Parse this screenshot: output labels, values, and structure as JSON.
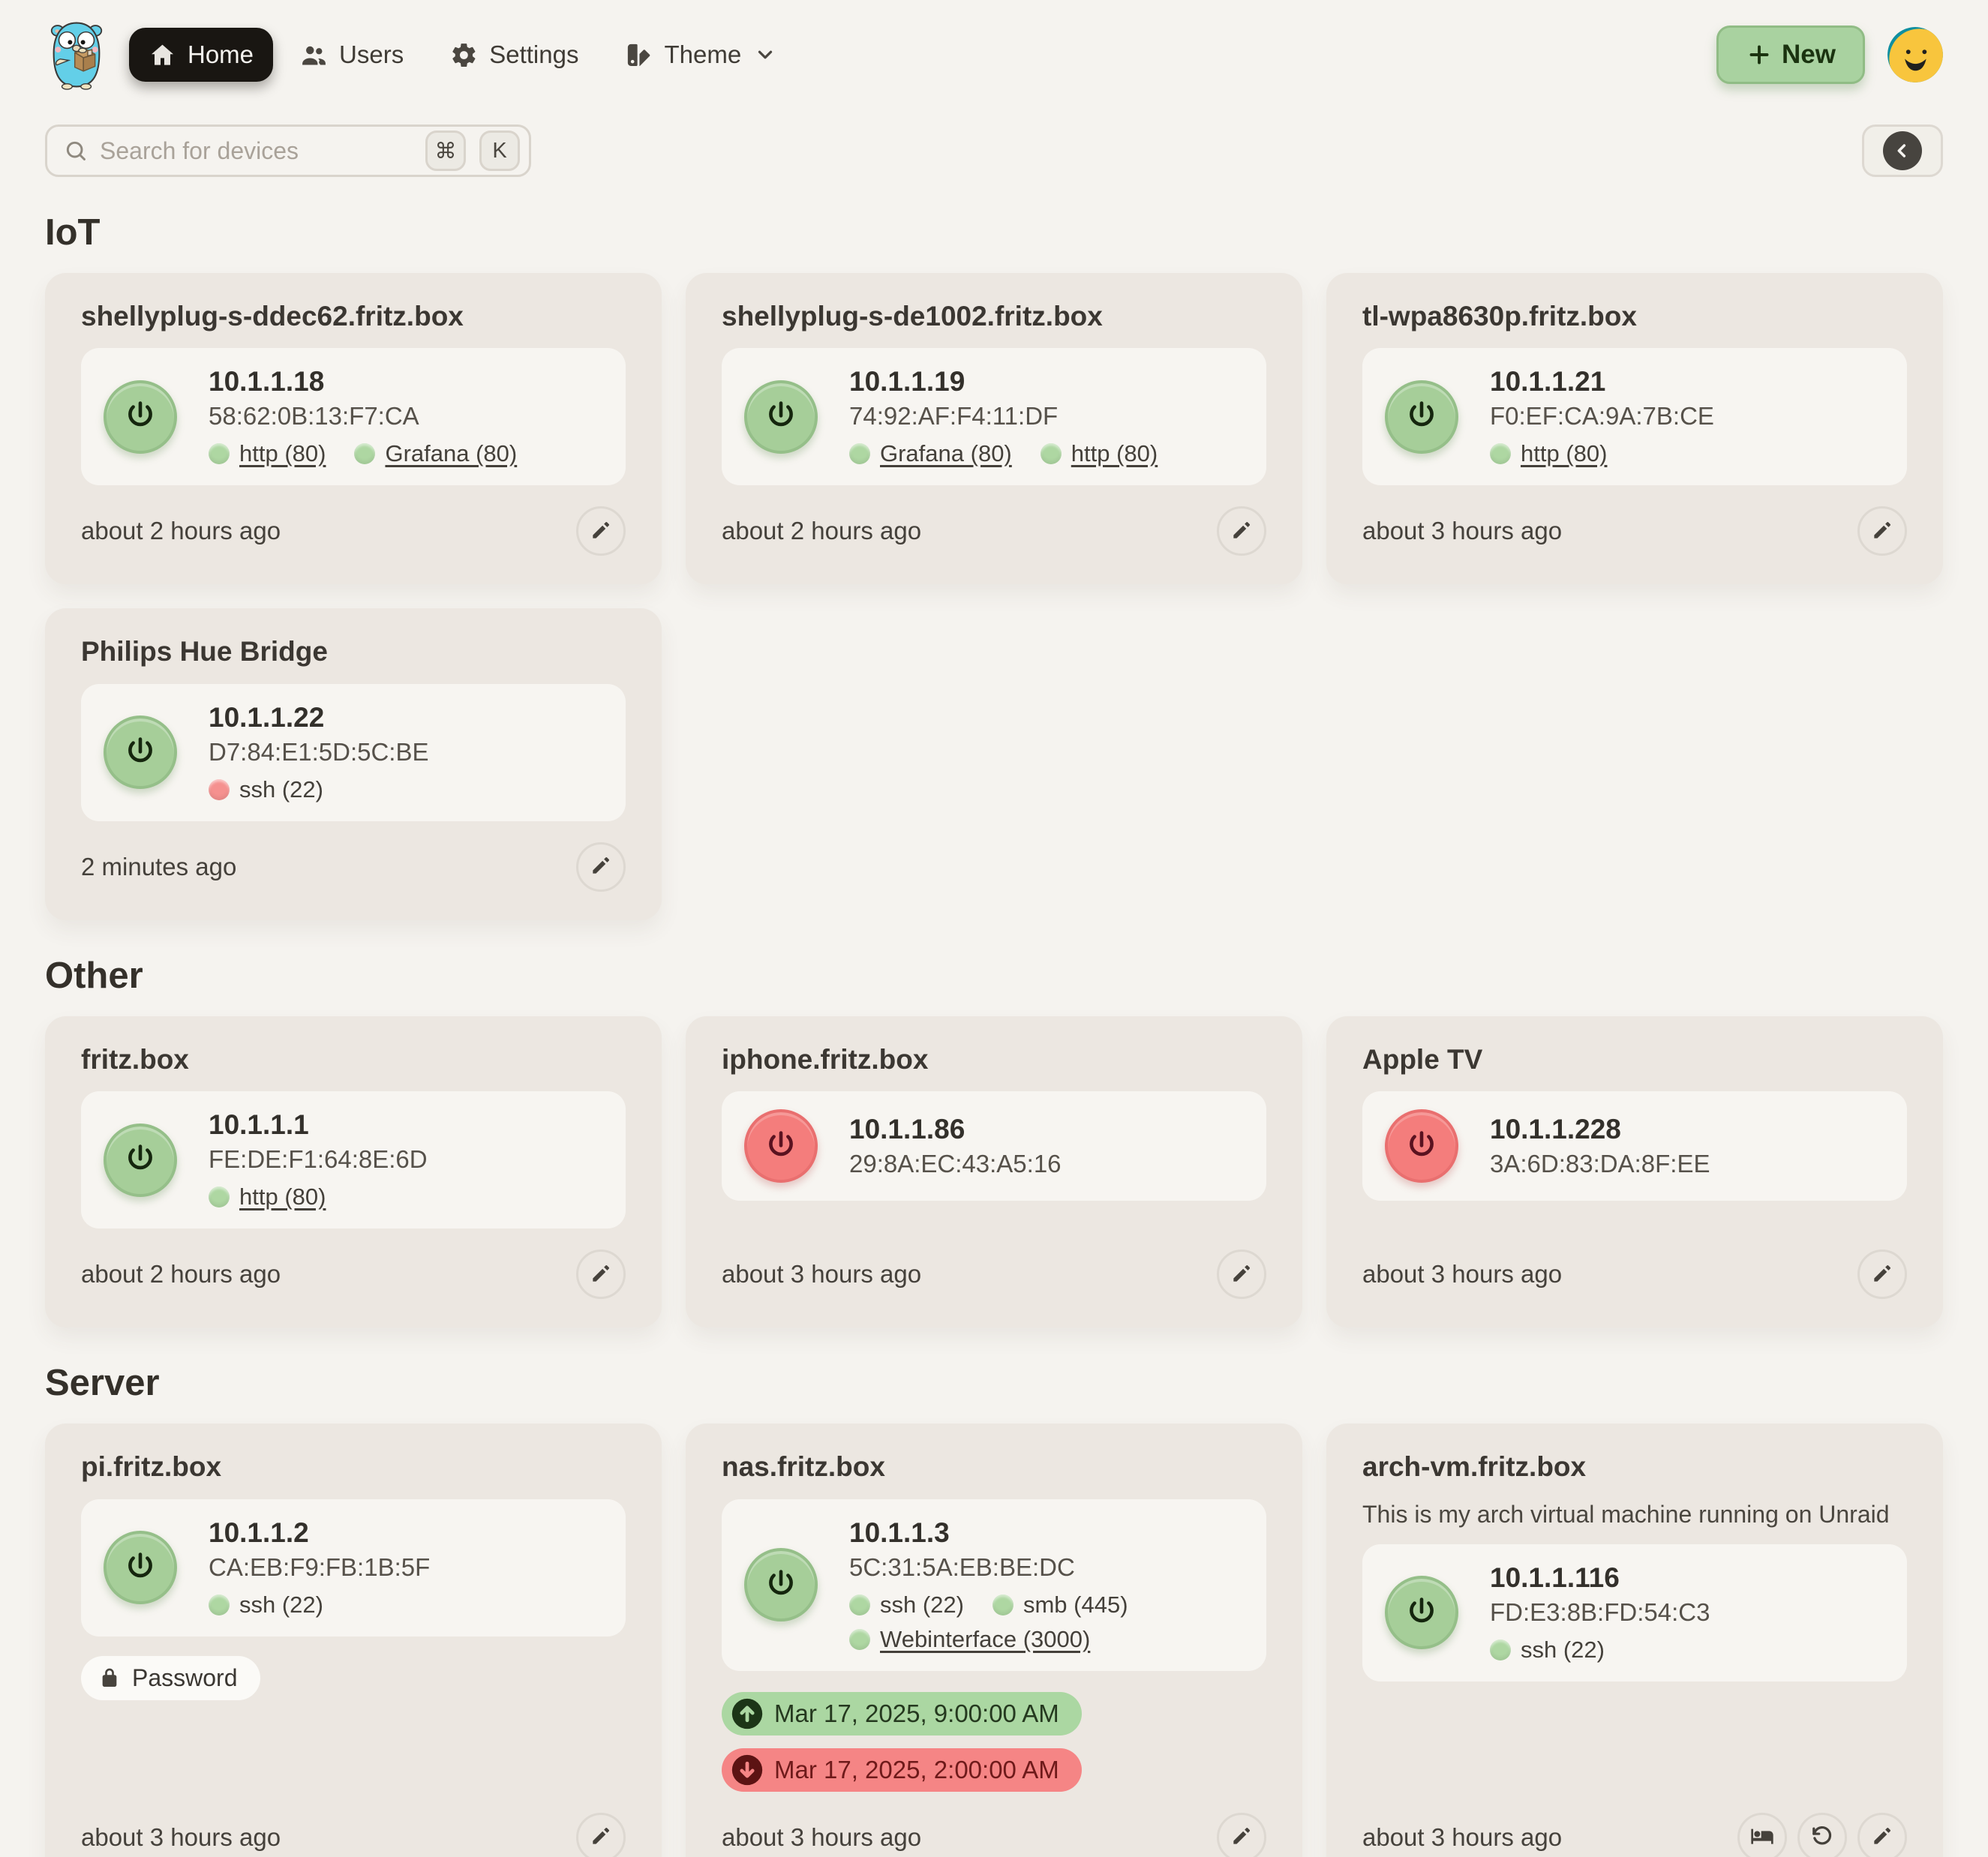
{
  "nav": {
    "items": [
      {
        "label": "Home",
        "icon": "home-icon",
        "active": true
      },
      {
        "label": "Users",
        "icon": "users-icon",
        "active": false
      },
      {
        "label": "Settings",
        "icon": "gear-icon",
        "active": false
      },
      {
        "label": "Theme",
        "icon": "theme-icon",
        "active": false,
        "chevron": true
      }
    ],
    "new_label": "New"
  },
  "search": {
    "placeholder": "Search for devices",
    "kbd_meta": "⌘",
    "kbd_key": "K"
  },
  "colors": {
    "page_bg": "#f5f3ef",
    "card_bg": "#ece7e1",
    "panel_bg": "#f7f5f1",
    "nav_active_bg": "#191612",
    "accent_green": "#a6ce99",
    "accent_red": "#f47d7c",
    "port_open_dot": "#aed7a2",
    "port_closed_dot": "#f5918f",
    "badge_wake_bg": "#abd7a2",
    "badge_shutdown_bg": "#f58585",
    "new_button_bg": "#a9d2a0"
  },
  "sections": [
    {
      "title": "IoT",
      "devices": [
        {
          "name": "shellyplug-s-ddec62.fritz.box",
          "status": "on",
          "ip": "10.1.1.18",
          "mac": "58:62:0B:13:F7:CA",
          "ports": [
            {
              "label": "http (80)",
              "status": "open",
              "link": true
            },
            {
              "label": "Grafana (80)",
              "status": "open",
              "link": true
            }
          ],
          "updated": "about 2 hours ago",
          "actions": [
            "edit"
          ]
        },
        {
          "name": "shellyplug-s-de1002.fritz.box",
          "status": "on",
          "ip": "10.1.1.19",
          "mac": "74:92:AF:F4:11:DF",
          "ports": [
            {
              "label": "Grafana (80)",
              "status": "open",
              "link": true
            },
            {
              "label": "http (80)",
              "status": "open",
              "link": true
            }
          ],
          "updated": "about 2 hours ago",
          "actions": [
            "edit"
          ]
        },
        {
          "name": "tl-wpa8630p.fritz.box",
          "status": "on",
          "ip": "10.1.1.21",
          "mac": "F0:EF:CA:9A:7B:CE",
          "ports": [
            {
              "label": "http (80)",
              "status": "open",
              "link": true
            }
          ],
          "updated": "about 3 hours ago",
          "actions": [
            "edit"
          ]
        },
        {
          "name": "Philips Hue Bridge",
          "status": "on",
          "ip": "10.1.1.22",
          "mac": "D7:84:E1:5D:5C:BE",
          "ports": [
            {
              "label": "ssh (22)",
              "status": "closed",
              "link": false
            }
          ],
          "updated": "2 minutes ago",
          "actions": [
            "edit"
          ]
        }
      ]
    },
    {
      "title": "Other",
      "devices": [
        {
          "name": "fritz.box",
          "status": "on",
          "ip": "10.1.1.1",
          "mac": "FE:DE:F1:64:8E:6D",
          "ports": [
            {
              "label": "http (80)",
              "status": "open",
              "link": true
            }
          ],
          "updated": "about 2 hours ago",
          "actions": [
            "edit"
          ]
        },
        {
          "name": "iphone.fritz.box",
          "status": "off",
          "ip": "10.1.1.86",
          "mac": "29:8A:EC:43:A5:16",
          "ports": [],
          "updated": "about 3 hours ago",
          "actions": [
            "edit"
          ]
        },
        {
          "name": "Apple TV",
          "status": "off",
          "ip": "10.1.1.228",
          "mac": "3A:6D:83:DA:8F:EE",
          "ports": [],
          "updated": "about 3 hours ago",
          "actions": [
            "edit"
          ]
        }
      ]
    },
    {
      "title": "Server",
      "devices": [
        {
          "name": "pi.fritz.box",
          "status": "on",
          "ip": "10.1.1.2",
          "mac": "CA:EB:F9:FB:1B:5F",
          "ports": [
            {
              "label": "ssh (22)",
              "status": "open",
              "link": false
            }
          ],
          "badge": "Password",
          "updated": "about 3 hours ago",
          "actions": [
            "edit"
          ]
        },
        {
          "name": "nas.fritz.box",
          "status": "on",
          "ip": "10.1.1.3",
          "mac": "5C:31:5A:EB:BE:DC",
          "ports": [
            {
              "label": "ssh (22)",
              "status": "open",
              "link": false
            },
            {
              "label": "smb (445)",
              "status": "open",
              "link": false
            },
            {
              "label": "Webinterface (3000)",
              "status": "open",
              "link": true
            }
          ],
          "schedules": [
            {
              "type": "wake",
              "icon": "arrow-up-circle-icon",
              "label": "Mar 17, 2025, 9:00:00 AM"
            },
            {
              "type": "shutdown",
              "icon": "arrow-down-circle-icon",
              "label": "Mar 17, 2025, 2:00:00 AM"
            }
          ],
          "updated": "about 3 hours ago",
          "actions": [
            "edit"
          ]
        },
        {
          "name": "arch-vm.fritz.box",
          "description": "This is my arch virtual machine running on Unraid",
          "status": "on",
          "ip": "10.1.1.116",
          "mac": "FD:E3:8B:FD:54:C3",
          "ports": [
            {
              "label": "ssh (22)",
              "status": "open",
              "link": false
            }
          ],
          "updated": "about 3 hours ago",
          "actions": [
            "sleep",
            "reboot",
            "edit"
          ]
        }
      ]
    }
  ]
}
